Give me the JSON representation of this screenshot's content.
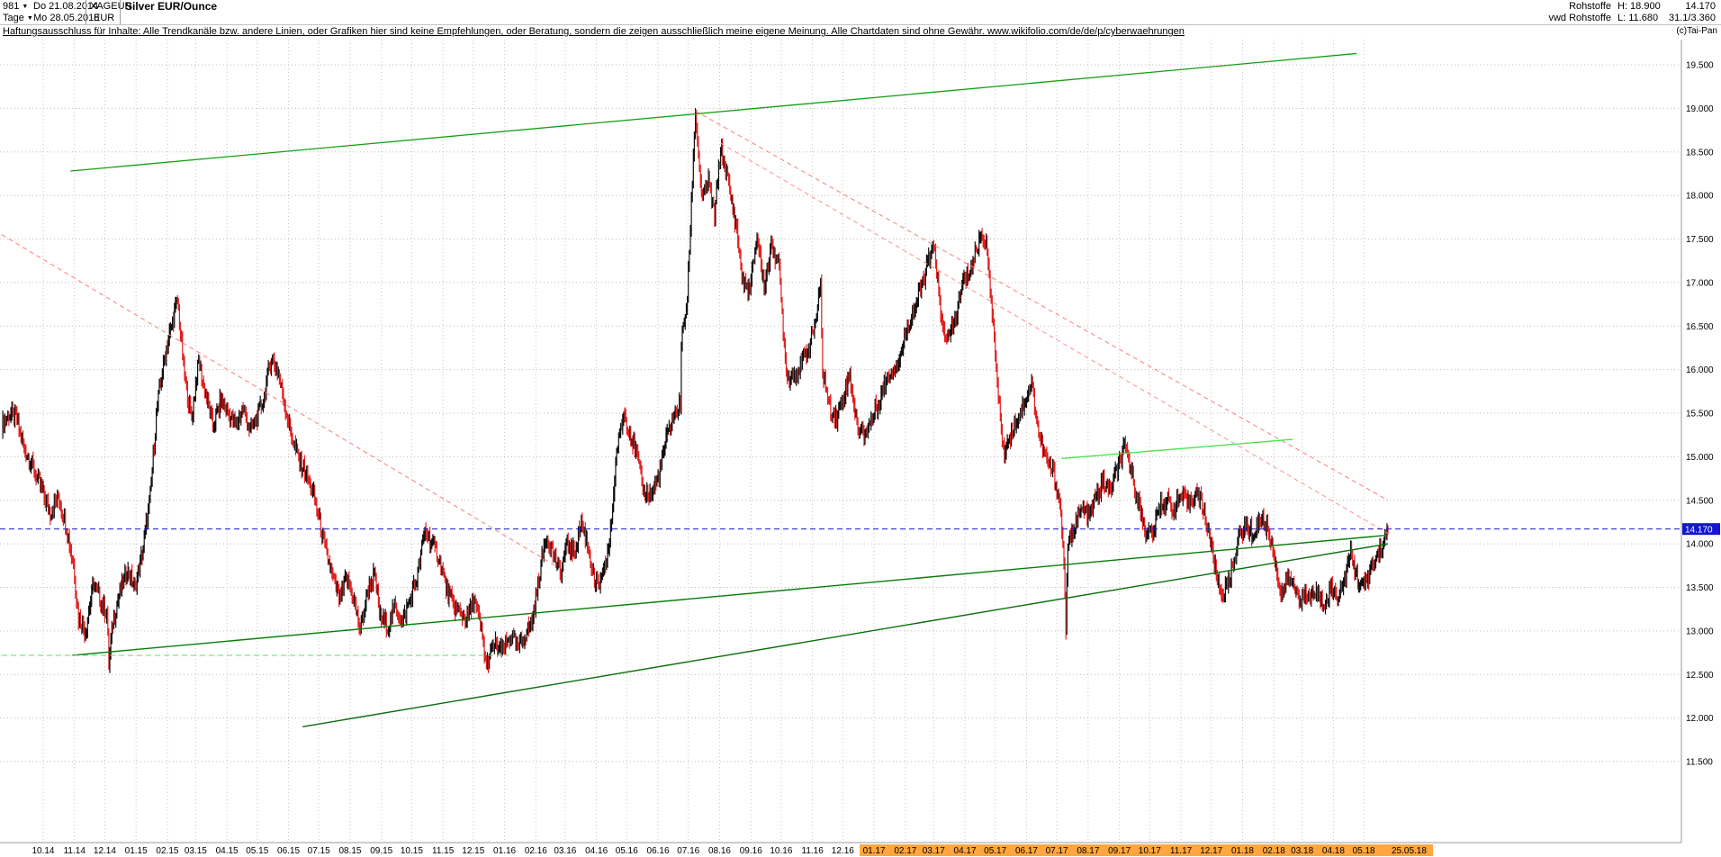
{
  "header": {
    "bars_count": "981",
    "start_date": "Do 21.08.2014",
    "period": "Tage",
    "end_date": "Mo 28.05.2018",
    "symbol": "XAGEUR",
    "currency": "EUR",
    "title": "Silver EUR/Ounce",
    "category": "Rohstoffe",
    "source": "vwd Rohstoffe",
    "high_label": "H: 18.900",
    "low_label": "L: 11.680",
    "last_price": "14.170",
    "lot_info": "31.1/3.360",
    "copyright": "(c)Tai-Pan"
  },
  "disclaimer": {
    "text": "Haftungsausschluss für Inhalte: Alle Trendkanäle bzw. andere Linien, oder Grafiken hier sind keine Empfehlungen, oder Beratung, sondern die zeigen ausschließlich meine eigene Meinung. Alle Chartdaten sind ohne Gewähr. ",
    "link": "www.wikifolio.com/de/de/p/cyberwaehrungen"
  },
  "chart_data": {
    "type": "bar",
    "title": "Silver EUR/Ounce (XAGEUR), daily bars",
    "x_range": [
      "2014-08-21",
      "2018-05-25"
    ],
    "y_axis": {
      "min": 11.5,
      "max": 19.5,
      "step": 0.5,
      "position": "right"
    },
    "grid": true,
    "up_color": "#101010",
    "down_color": "#e22020",
    "highlight_color": "#ffa63e",
    "x_highlight_from": "2017-01-01",
    "x_tick_labels": [
      "10.14",
      "11.14",
      "12.14",
      "01.15",
      "02.15",
      "03.15",
      "04.15",
      "05.15",
      "06.15",
      "07.15",
      "08.15",
      "09.15",
      "10.15",
      "11.15",
      "12.15",
      "01.16",
      "02.16",
      "03.16",
      "04.16",
      "05.16",
      "06.16",
      "07.16",
      "08.16",
      "09.16",
      "10.16",
      "11.16",
      "12.16",
      "01.17",
      "02.17",
      "03.17",
      "04.17",
      "05.17",
      "06.17",
      "07.17",
      "08.17",
      "09.17",
      "10.17",
      "11.17",
      "12.17",
      "01.18",
      "02.18",
      "03.18",
      "04.18",
      "05.18"
    ],
    "last_date_label": "25.05.18",
    "price_line": {
      "value": 14.17,
      "label": "14.170",
      "color": "#1414d2"
    },
    "trend_lines": [
      {
        "name": "rising-resistance-channel",
        "from": [
          "2014-10-28",
          18.28
        ],
        "to": [
          "2018-04-24",
          19.63
        ],
        "color": "#12a012",
        "width": 1.3,
        "dash": ""
      },
      {
        "name": "falling-resistance-2014",
        "from": [
          "2014-08-21",
          17.55
        ],
        "to": [
          "2016-02-20",
          13.75
        ],
        "color": "#ff7a7a",
        "width": 1,
        "dash": "5,4"
      },
      {
        "name": "falling-resistance-2016-a",
        "from": [
          "2016-07-08",
          18.97
        ],
        "to": [
          "2018-05-25",
          14.5
        ],
        "color": "#ff7a7a",
        "width": 1,
        "dash": "5,4"
      },
      {
        "name": "falling-resistance-2016-b",
        "from": [
          "2016-08-02",
          18.6
        ],
        "to": [
          "2018-05-25",
          14.12
        ],
        "color": "#ff9090",
        "width": 1,
        "dash": "5,4"
      },
      {
        "name": "rising-support-long",
        "from": [
          "2014-10-30",
          12.72
        ],
        "to": [
          "2018-05-25",
          14.1
        ],
        "color": "#077d07",
        "width": 1.4,
        "dash": ""
      },
      {
        "name": "rising-support-steep",
        "from": [
          "2015-06-15",
          11.9
        ],
        "to": [
          "2018-05-25",
          14.0
        ],
        "color": "#0a6e0a",
        "width": 1.4,
        "dash": ""
      },
      {
        "name": "horizontal-resistance-15",
        "from": [
          "2017-07-06",
          14.98
        ],
        "to": [
          "2018-02-20",
          15.2
        ],
        "color": "#49e049",
        "width": 1.3,
        "dash": ""
      },
      {
        "name": "support-dashed-12-7",
        "from": [
          "2014-08-21",
          12.72
        ],
        "to": [
          "2016-01-05",
          12.72
        ],
        "color": "#63dd63",
        "width": 1,
        "dash": "6,4"
      }
    ],
    "series": [
      {
        "name": "XAGEUR",
        "points": [
          [
            "2014-08-21",
            15.35
          ],
          [
            "2014-08-28",
            15.5
          ],
          [
            "2014-09-04",
            15.45
          ],
          [
            "2014-09-12",
            15.1
          ],
          [
            "2014-09-22",
            14.85
          ],
          [
            "2014-09-30",
            14.6
          ],
          [
            "2014-10-08",
            14.35
          ],
          [
            "2014-10-16",
            14.55
          ],
          [
            "2014-10-24",
            14.2
          ],
          [
            "2014-10-31",
            13.75
          ],
          [
            "2014-11-05",
            13.15
          ],
          [
            "2014-11-12",
            13.0
          ],
          [
            "2014-11-20",
            13.55
          ],
          [
            "2014-11-27",
            13.35
          ],
          [
            "2014-12-03",
            13.2
          ],
          [
            "2014-12-05",
            12.62
          ],
          [
            "2014-12-09",
            13.1
          ],
          [
            "2014-12-16",
            13.45
          ],
          [
            "2014-12-23",
            13.7
          ],
          [
            "2014-12-31",
            13.5
          ],
          [
            "2015-01-08",
            13.95
          ],
          [
            "2015-01-15",
            14.55
          ],
          [
            "2015-01-22",
            15.6
          ],
          [
            "2015-01-30",
            16.2
          ],
          [
            "2015-02-11",
            16.8
          ],
          [
            "2015-02-18",
            15.9
          ],
          [
            "2015-02-25",
            15.45
          ],
          [
            "2015-03-04",
            16.1
          ],
          [
            "2015-03-11",
            15.7
          ],
          [
            "2015-03-18",
            15.35
          ],
          [
            "2015-03-26",
            15.65
          ],
          [
            "2015-04-02",
            15.5
          ],
          [
            "2015-04-10",
            15.35
          ],
          [
            "2015-04-17",
            15.55
          ],
          [
            "2015-04-24",
            15.3
          ],
          [
            "2015-05-01",
            15.45
          ],
          [
            "2015-05-08",
            15.7
          ],
          [
            "2015-05-15",
            16.15
          ],
          [
            "2015-05-22",
            15.95
          ],
          [
            "2015-05-29",
            15.55
          ],
          [
            "2015-06-05",
            15.2
          ],
          [
            "2015-06-12",
            14.95
          ],
          [
            "2015-06-19",
            14.8
          ],
          [
            "2015-06-26",
            14.55
          ],
          [
            "2015-07-02",
            14.25
          ],
          [
            "2015-07-08",
            13.9
          ],
          [
            "2015-07-15",
            13.6
          ],
          [
            "2015-07-22",
            13.35
          ],
          [
            "2015-07-28",
            13.6
          ],
          [
            "2015-08-04",
            13.4
          ],
          [
            "2015-08-11",
            13.0
          ],
          [
            "2015-08-18",
            13.45
          ],
          [
            "2015-08-25",
            13.65
          ],
          [
            "2015-08-31",
            13.15
          ],
          [
            "2015-09-08",
            13.05
          ],
          [
            "2015-09-15",
            13.3
          ],
          [
            "2015-09-22",
            13.1
          ],
          [
            "2015-09-29",
            13.35
          ],
          [
            "2015-10-06",
            13.6
          ],
          [
            "2015-10-14",
            14.15
          ],
          [
            "2015-10-21",
            14.0
          ],
          [
            "2015-10-28",
            13.85
          ],
          [
            "2015-11-04",
            13.5
          ],
          [
            "2015-11-11",
            13.3
          ],
          [
            "2015-11-18",
            13.2
          ],
          [
            "2015-11-25",
            13.15
          ],
          [
            "2015-12-02",
            13.35
          ],
          [
            "2015-12-09",
            13.0
          ],
          [
            "2015-12-14",
            12.6
          ],
          [
            "2015-12-21",
            12.85
          ],
          [
            "2015-12-30",
            12.75
          ],
          [
            "2016-01-07",
            12.95
          ],
          [
            "2016-01-14",
            12.8
          ],
          [
            "2016-01-21",
            12.95
          ],
          [
            "2016-01-28",
            13.1
          ],
          [
            "2016-02-04",
            13.6
          ],
          [
            "2016-02-11",
            14.1
          ],
          [
            "2016-02-18",
            13.9
          ],
          [
            "2016-02-25",
            13.65
          ],
          [
            "2016-03-03",
            14.0
          ],
          [
            "2016-03-10",
            13.9
          ],
          [
            "2016-03-17",
            14.25
          ],
          [
            "2016-03-24",
            13.95
          ],
          [
            "2016-03-31",
            13.5
          ],
          [
            "2016-04-07",
            13.6
          ],
          [
            "2016-04-14",
            14.0
          ],
          [
            "2016-04-21",
            15.05
          ],
          [
            "2016-04-28",
            15.5
          ],
          [
            "2016-05-04",
            15.3
          ],
          [
            "2016-05-11",
            15.0
          ],
          [
            "2016-05-18",
            14.6
          ],
          [
            "2016-05-25",
            14.55
          ],
          [
            "2016-06-01",
            14.75
          ],
          [
            "2016-06-08",
            15.15
          ],
          [
            "2016-06-16",
            15.45
          ],
          [
            "2016-06-23",
            15.6
          ],
          [
            "2016-06-24",
            16.3
          ],
          [
            "2016-06-30",
            16.8
          ],
          [
            "2016-07-05",
            18.2
          ],
          [
            "2016-07-08",
            18.95
          ],
          [
            "2016-07-12",
            18.3
          ],
          [
            "2016-07-15",
            17.95
          ],
          [
            "2016-07-21",
            18.15
          ],
          [
            "2016-07-27",
            17.75
          ],
          [
            "2016-08-02",
            18.55
          ],
          [
            "2016-08-08",
            18.25
          ],
          [
            "2016-08-12",
            18.0
          ],
          [
            "2016-08-18",
            17.6
          ],
          [
            "2016-08-24",
            17.0
          ],
          [
            "2016-08-31",
            16.9
          ],
          [
            "2016-09-07",
            17.55
          ],
          [
            "2016-09-14",
            16.95
          ],
          [
            "2016-09-22",
            17.45
          ],
          [
            "2016-09-29",
            17.15
          ],
          [
            "2016-10-04",
            16.3
          ],
          [
            "2016-10-07",
            15.9
          ],
          [
            "2016-10-14",
            15.95
          ],
          [
            "2016-10-21",
            16.05
          ],
          [
            "2016-10-28",
            16.25
          ],
          [
            "2016-11-04",
            16.55
          ],
          [
            "2016-11-09",
            16.95
          ],
          [
            "2016-11-11",
            16.0
          ],
          [
            "2016-11-18",
            15.55
          ],
          [
            "2016-11-25",
            15.45
          ],
          [
            "2016-12-02",
            15.7
          ],
          [
            "2016-12-08",
            15.95
          ],
          [
            "2016-12-15",
            15.35
          ],
          [
            "2016-12-22",
            15.25
          ],
          [
            "2016-12-30",
            15.45
          ],
          [
            "2017-01-06",
            15.65
          ],
          [
            "2017-01-13",
            15.9
          ],
          [
            "2017-01-20",
            16.0
          ],
          [
            "2017-01-27",
            16.15
          ],
          [
            "2017-02-03",
            16.5
          ],
          [
            "2017-02-10",
            16.7
          ],
          [
            "2017-02-17",
            16.95
          ],
          [
            "2017-02-24",
            17.25
          ],
          [
            "2017-03-02",
            17.4
          ],
          [
            "2017-03-09",
            16.5
          ],
          [
            "2017-03-16",
            16.35
          ],
          [
            "2017-03-23",
            16.6
          ],
          [
            "2017-03-30",
            17.0
          ],
          [
            "2017-04-06",
            17.15
          ],
          [
            "2017-04-12",
            17.35
          ],
          [
            "2017-04-18",
            17.6
          ],
          [
            "2017-04-24",
            17.3
          ],
          [
            "2017-04-28",
            16.6
          ],
          [
            "2017-05-05",
            15.6
          ],
          [
            "2017-05-09",
            15.05
          ],
          [
            "2017-05-16",
            15.25
          ],
          [
            "2017-05-23",
            15.45
          ],
          [
            "2017-05-31",
            15.65
          ],
          [
            "2017-06-06",
            15.85
          ],
          [
            "2017-06-14",
            15.2
          ],
          [
            "2017-06-21",
            14.95
          ],
          [
            "2017-06-28",
            14.8
          ],
          [
            "2017-07-04",
            14.45
          ],
          [
            "2017-07-07",
            14.05
          ],
          [
            "2017-07-10",
            13.05
          ],
          [
            "2017-07-12",
            13.95
          ],
          [
            "2017-07-19",
            14.25
          ],
          [
            "2017-07-26",
            14.4
          ],
          [
            "2017-08-02",
            14.3
          ],
          [
            "2017-08-09",
            14.55
          ],
          [
            "2017-08-16",
            14.7
          ],
          [
            "2017-08-23",
            14.6
          ],
          [
            "2017-08-30",
            14.85
          ],
          [
            "2017-09-06",
            15.1
          ],
          [
            "2017-09-13",
            14.85
          ],
          [
            "2017-09-20",
            14.45
          ],
          [
            "2017-09-27",
            14.15
          ],
          [
            "2017-10-04",
            14.1
          ],
          [
            "2017-10-11",
            14.45
          ],
          [
            "2017-10-18",
            14.5
          ],
          [
            "2017-10-25",
            14.4
          ],
          [
            "2017-11-01",
            14.55
          ],
          [
            "2017-11-08",
            14.45
          ],
          [
            "2017-11-15",
            14.6
          ],
          [
            "2017-11-22",
            14.45
          ],
          [
            "2017-11-29",
            14.1
          ],
          [
            "2017-12-06",
            13.65
          ],
          [
            "2017-12-12",
            13.4
          ],
          [
            "2017-12-19",
            13.6
          ],
          [
            "2017-12-29",
            14.1
          ],
          [
            "2018-01-05",
            14.2
          ],
          [
            "2018-01-12",
            14.1
          ],
          [
            "2018-01-19",
            14.3
          ],
          [
            "2018-01-25",
            14.2
          ],
          [
            "2018-02-01",
            13.9
          ],
          [
            "2018-02-08",
            13.4
          ],
          [
            "2018-02-15",
            13.6
          ],
          [
            "2018-02-22",
            13.5
          ],
          [
            "2018-03-01",
            13.35
          ],
          [
            "2018-03-08",
            13.4
          ],
          [
            "2018-03-15",
            13.45
          ],
          [
            "2018-03-22",
            13.3
          ],
          [
            "2018-03-29",
            13.5
          ],
          [
            "2018-04-05",
            13.4
          ],
          [
            "2018-04-12",
            13.6
          ],
          [
            "2018-04-18",
            13.9
          ],
          [
            "2018-04-25",
            13.6
          ],
          [
            "2018-05-02",
            13.5
          ],
          [
            "2018-05-09",
            13.75
          ],
          [
            "2018-05-16",
            13.9
          ],
          [
            "2018-05-22",
            14.05
          ],
          [
            "2018-05-25",
            14.17
          ]
        ]
      }
    ]
  }
}
